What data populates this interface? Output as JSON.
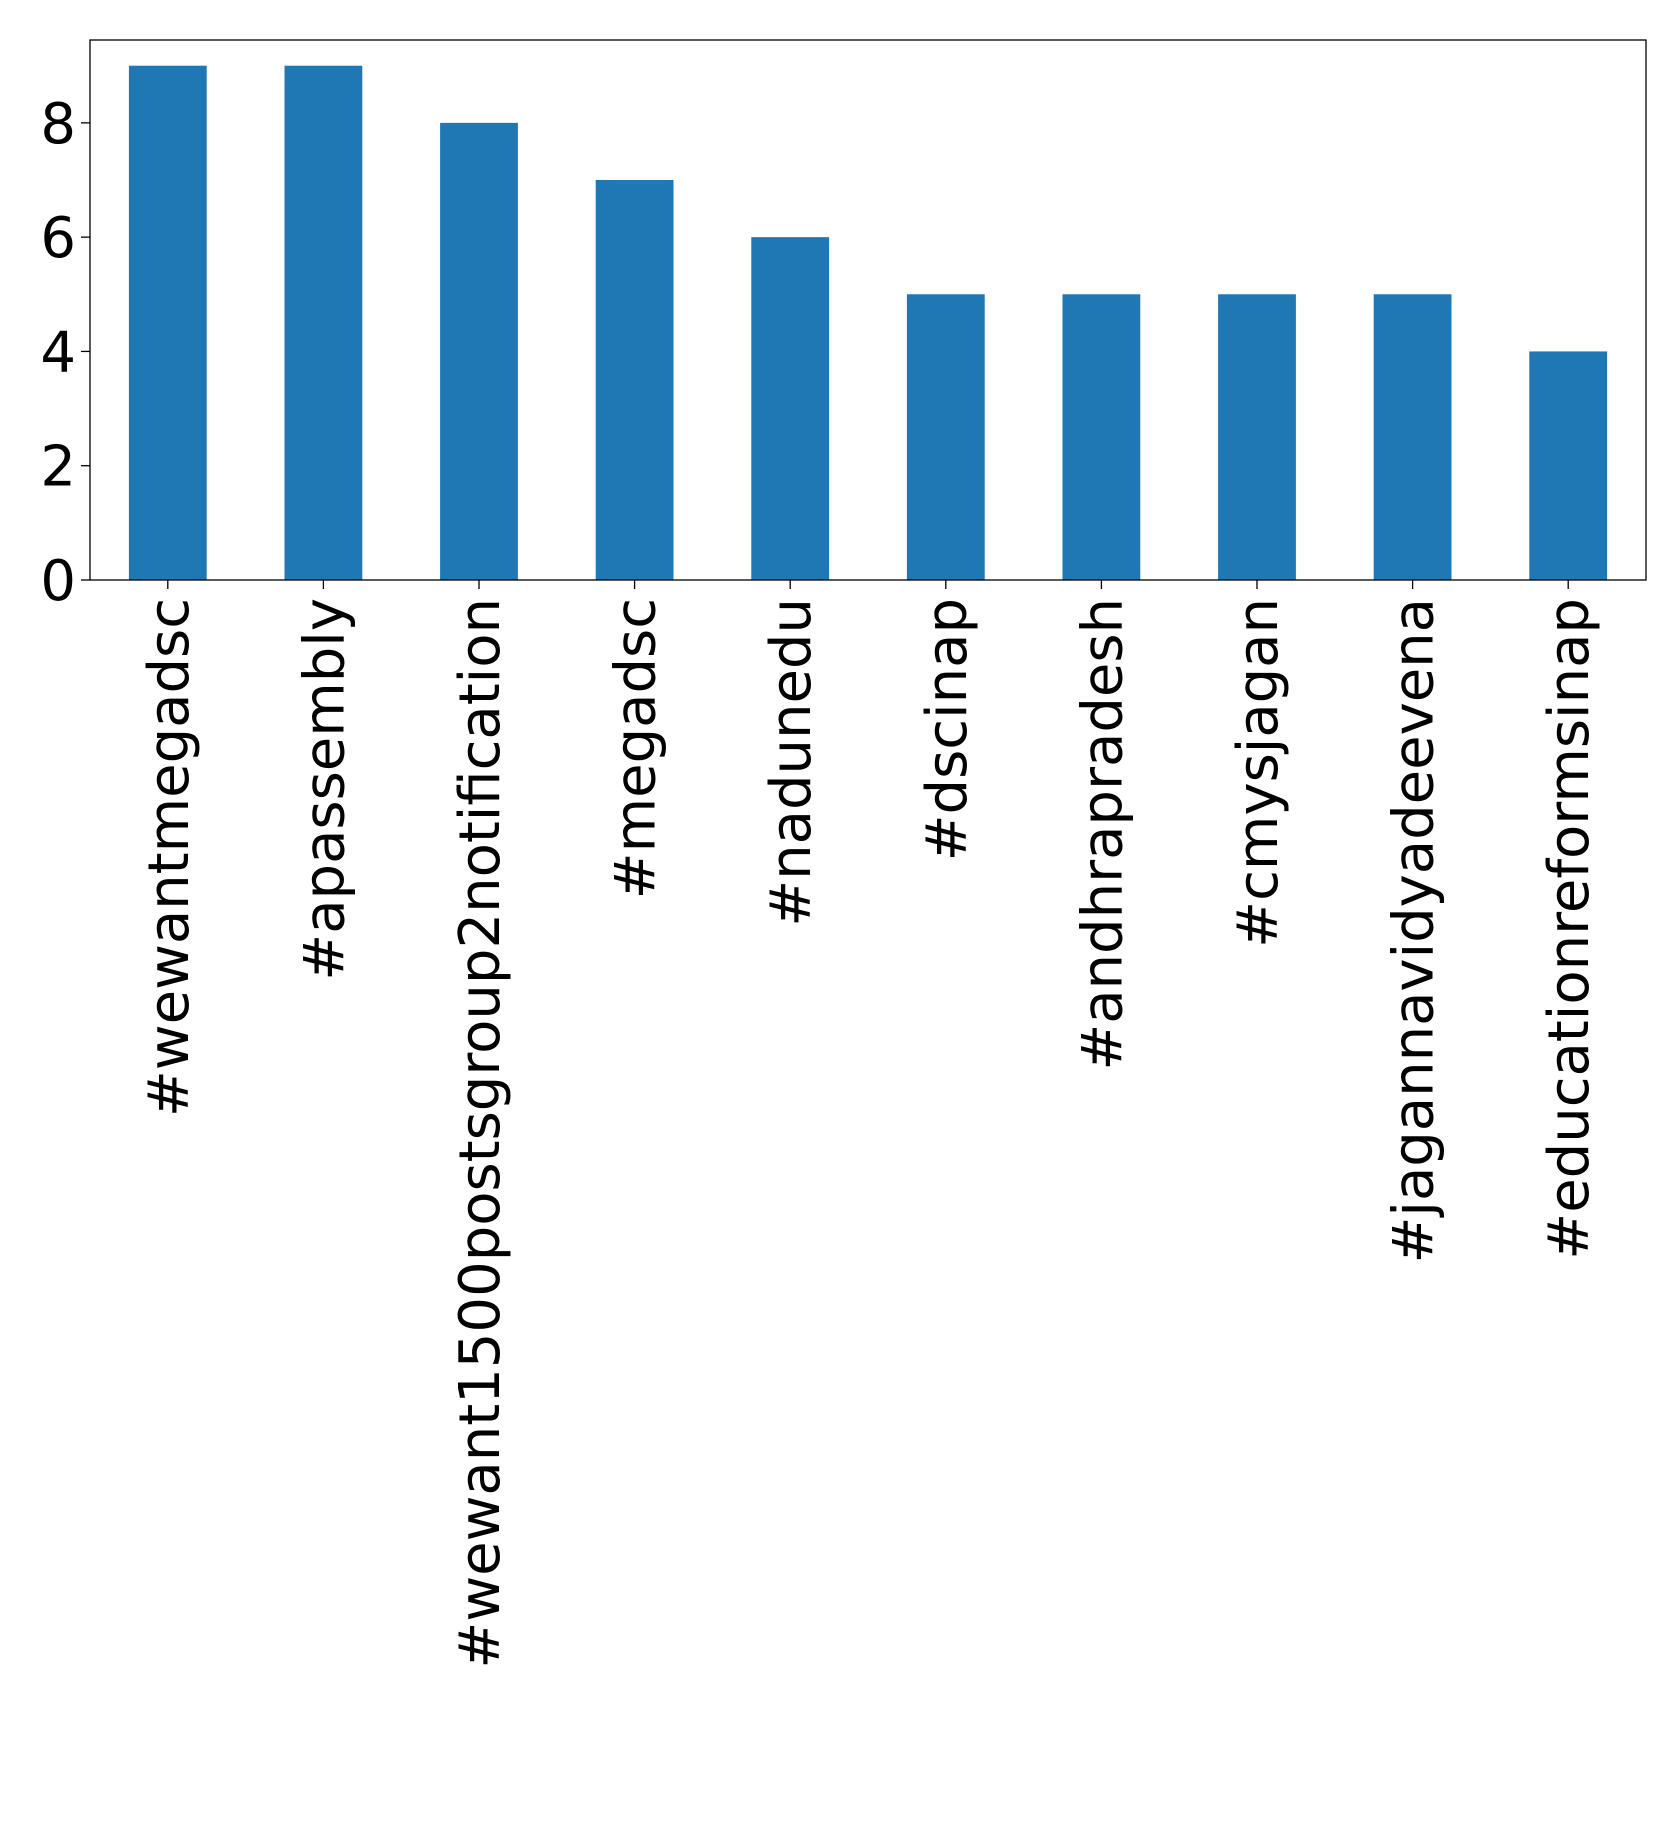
{
  "chart_data": {
    "type": "bar",
    "categories": [
      "#wewantmegadsc",
      "#apassembly",
      "#wewant1500postsgroup2notification",
      "#megadsc",
      "#nadunedu",
      "#dscinap",
      "#andhrapradesh",
      "#cmysjagan",
      "#jagannavidyadeevena",
      "#educationreformsinap"
    ],
    "values": [
      9,
      9,
      8,
      7,
      6,
      5,
      5,
      5,
      5,
      4
    ],
    "title": "",
    "xlabel": "",
    "ylabel": "",
    "ylim": [
      0,
      9.45
    ],
    "yticks": [
      "0",
      "2",
      "4",
      "6",
      "8"
    ],
    "grid": false,
    "legend": "none",
    "bar_color": "#1f77b4"
  }
}
